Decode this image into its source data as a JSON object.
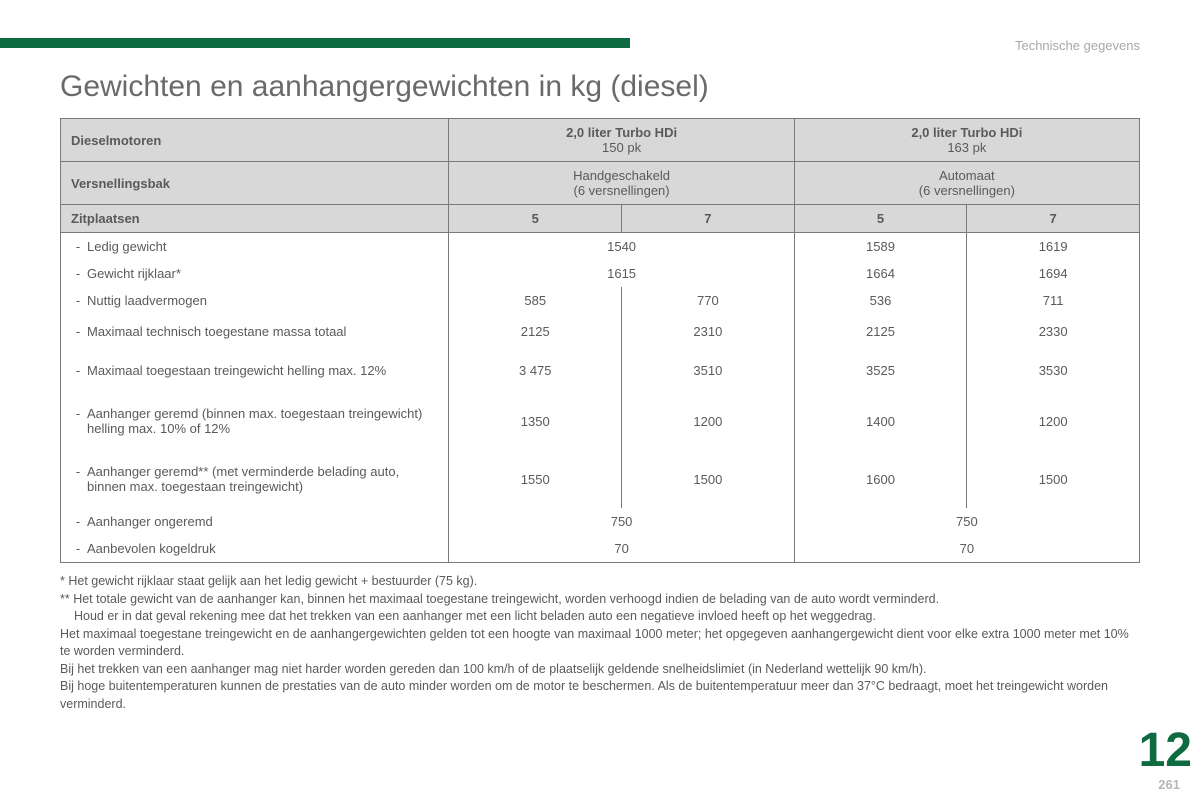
{
  "section_label": "Technische gegevens",
  "title": "Gewichten en aanhangergewichten in kg (diesel)",
  "headers": {
    "row1_label": "Dieselmotoren",
    "engine1_line1": "2,0 liter Turbo HDi",
    "engine1_line2": "150 pk",
    "engine2_line1": "2,0 liter Turbo HDi",
    "engine2_line2": "163 pk",
    "row2_label": "Versnellingsbak",
    "gearbox1_line1": "Handgeschakeld",
    "gearbox1_line2": "(6 versnellingen)",
    "gearbox2_line1": "Automaat",
    "gearbox2_line2": "(6 versnellingen)",
    "row3_label": "Zitplaatsen",
    "seats": [
      "5",
      "7",
      "5",
      "7"
    ]
  },
  "rows": [
    {
      "label": "Ledig gewicht",
      "v": [
        "1540:2",
        "1589",
        "1619"
      ]
    },
    {
      "label": "Gewicht rijklaar*",
      "v": [
        "1615:2",
        "1664",
        "1694"
      ]
    },
    {
      "label": "Nuttig laadvermogen",
      "v": [
        "585",
        "770",
        "536",
        "711"
      ]
    },
    {
      "label": "Maximaal technisch toegestane massa totaal",
      "v": [
        "2125",
        "2310",
        "2125",
        "2330"
      ],
      "cls": "tall"
    },
    {
      "label": "Maximaal toegestaan treingewicht helling max. 12%",
      "v": [
        "3 475",
        "3510",
        "3525",
        "3530"
      ],
      "cls": "taller"
    },
    {
      "label": "Aanhanger geremd (binnen max. toegestaan treingewicht) helling max. 10% of 12%",
      "v": [
        "1350",
        "1200",
        "1400",
        "1200"
      ],
      "cls": "taller"
    },
    {
      "label": "Aanhanger geremd** (met verminderde belading auto, binnen max. toegestaan treingewicht)",
      "v": [
        "1550",
        "1500",
        "1600",
        "1500"
      ],
      "cls": "taller"
    },
    {
      "label": "Aanhanger ongeremd",
      "v": [
        "750:2",
        "750:2"
      ]
    },
    {
      "label": "Aanbevolen kogeldruk",
      "v": [
        "70:2",
        "70:2"
      ]
    }
  ],
  "footnotes": [
    "* Het gewicht rijklaar staat gelijk aan het ledig gewicht + bestuurder (75 kg).",
    "** Het totale gewicht van de aanhanger kan, binnen het maximaal toegestane treingewicht, worden verhoogd indien de belading van de auto wordt verminderd.",
    "Houd er in dat geval rekening mee dat het trekken van een aanhanger met een licht beladen auto een negatieve invloed heeft op het weggedrag.",
    "Het maximaal toegestane treingewicht en de aanhangergewichten gelden tot een hoogte van maximaal 1000 meter; het opgegeven aanhangergewicht dient voor elke extra 1000 meter met 10% te worden verminderd.",
    "Bij het trekken van een aanhanger mag niet harder worden gereden dan 100 km/h of de plaatselijk geldende snelheidslimiet (in Nederland wettelijk 90 km/h).",
    "Bij hoge buitentemperaturen kunnen de prestaties van de auto minder worden om de motor te beschermen. Als de buitentemperatuur meer dan 37°C bedraagt, moet het treingewicht worden verminderd."
  ],
  "chapter": "12",
  "page": "261",
  "colors": {
    "accent": "#0d6b3f",
    "header_bg": "#d8d8d8",
    "border": "#7a7a7a"
  },
  "layout": {
    "label_col_width_pct": 36,
    "data_col_width_pct": 16
  }
}
